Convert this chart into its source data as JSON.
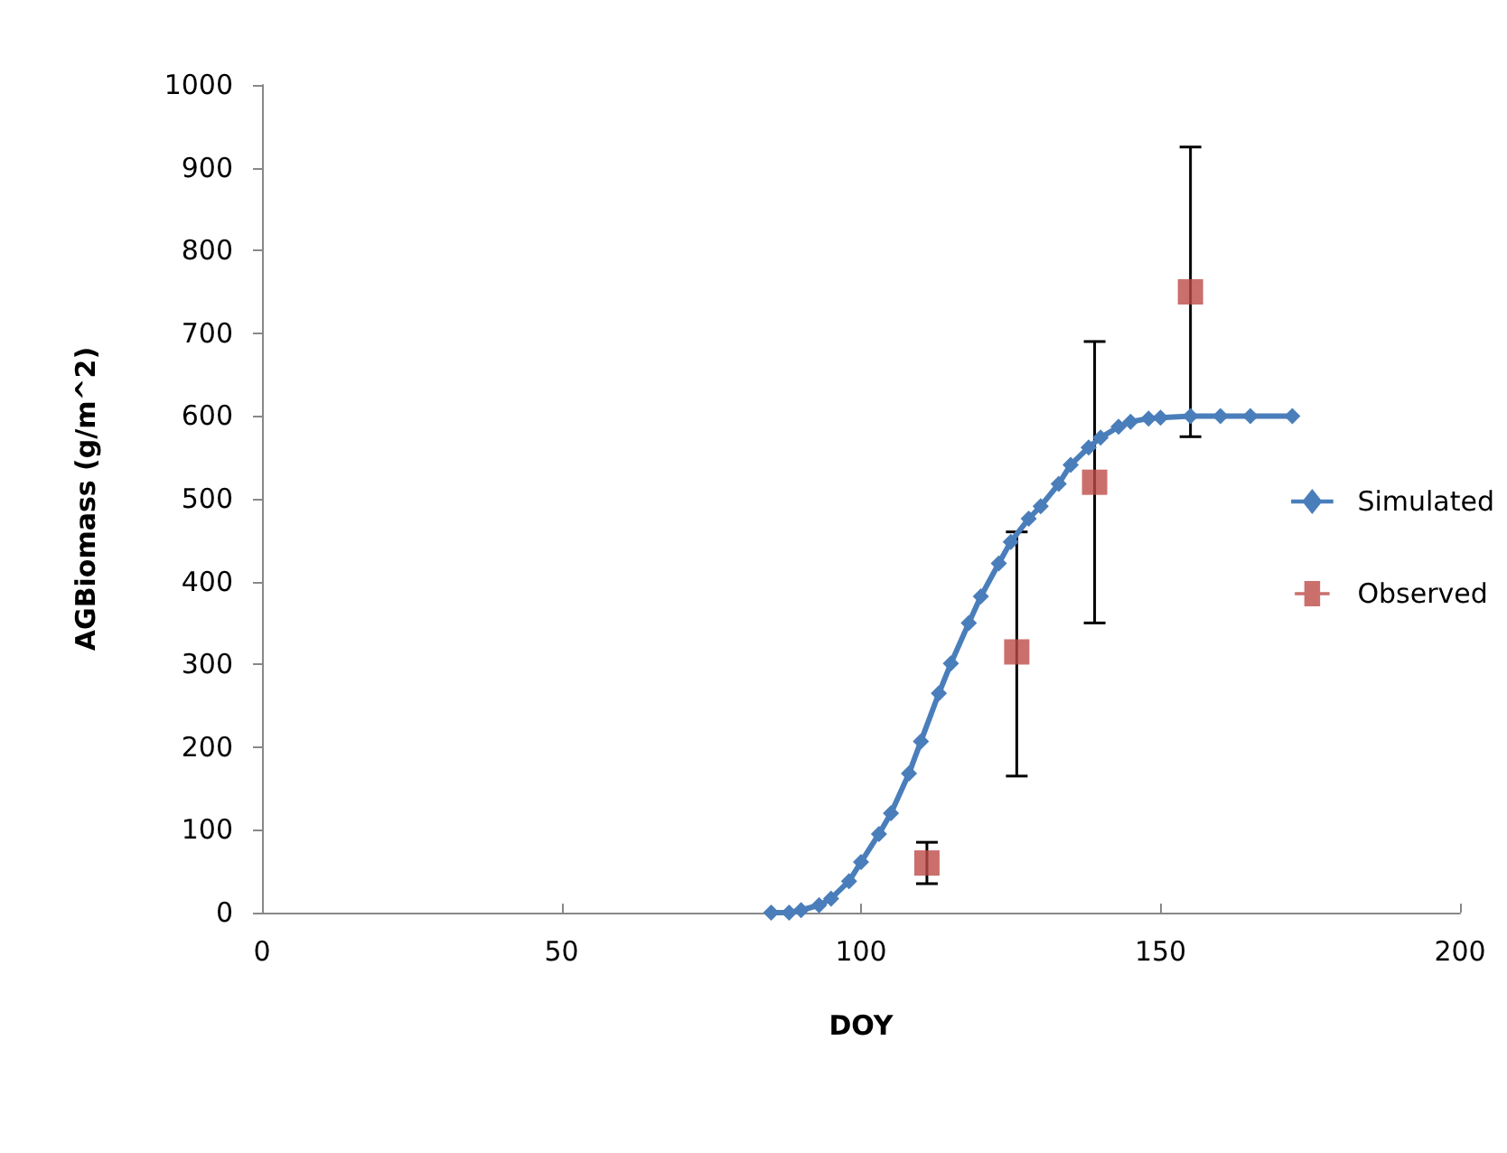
{
  "chart_data": {
    "type": "line",
    "xlabel": "DOY",
    "ylabel": "AGBiomass (g/m^2)",
    "xlim": [
      0,
      200
    ],
    "xticks": [
      0,
      50,
      100,
      150,
      200
    ],
    "ylim": [
      0,
      1000
    ],
    "yticks": [
      0,
      100,
      200,
      300,
      400,
      500,
      600,
      700,
      800,
      900,
      1000
    ],
    "grid": false,
    "legend": "right",
    "series": [
      {
        "name": "Simulated",
        "marker": "diamond",
        "color": "#4a7ebb",
        "x": [
          85,
          88,
          90,
          93,
          95,
          98,
          100,
          103,
          105,
          108,
          110,
          113,
          115,
          118,
          120,
          123,
          125,
          128,
          130,
          133,
          135,
          138,
          140,
          143,
          145,
          148,
          150,
          155,
          160,
          165,
          172
        ],
        "values": [
          0,
          0,
          3,
          9,
          17,
          38,
          61,
          95,
          120,
          168,
          207,
          265,
          301,
          350,
          382,
          422,
          448,
          476,
          491,
          518,
          541,
          562,
          574,
          587,
          593,
          597,
          598,
          600,
          600,
          600,
          600
        ]
      },
      {
        "name": "Observed",
        "type": "scatter",
        "marker": "square",
        "color": "#be4b48",
        "x": [
          111,
          126,
          139,
          155
        ],
        "values": [
          60,
          315,
          520,
          750
        ],
        "errors": [
          [
            35,
            85
          ],
          [
            165,
            460
          ],
          [
            350,
            690
          ],
          [
            575,
            925
          ]
        ]
      }
    ]
  }
}
